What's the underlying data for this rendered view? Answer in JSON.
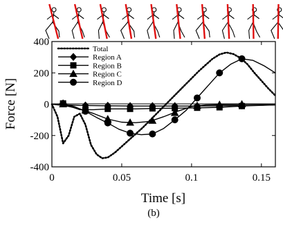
{
  "chart_data": {
    "type": "line",
    "title": "",
    "caption": "(b)",
    "xlabel": "Time [s]",
    "ylabel": "Force [N]",
    "xlim": [
      0,
      0.16
    ],
    "ylim": [
      -400,
      400
    ],
    "xticks": [
      0,
      0.05,
      0.1,
      0.15
    ],
    "xtick_labels": [
      "0",
      "0.05",
      "0.1",
      "0.15"
    ],
    "yticks": [
      -400,
      -200,
      0,
      200,
      400
    ],
    "ytick_labels": [
      "-400",
      "-200",
      "0",
      "200",
      "400"
    ],
    "grid": false,
    "legend_position": "top-left",
    "stick_figures": 10,
    "series": [
      {
        "name": "Total",
        "style": "dotted",
        "marker": "none",
        "color": "#000000",
        "x": [
          0,
          0.004,
          0.008,
          0.012,
          0.016,
          0.02,
          0.024,
          0.028,
          0.032,
          0.036,
          0.04,
          0.045,
          0.05,
          0.055,
          0.06,
          0.065,
          0.07,
          0.075,
          0.08,
          0.085,
          0.09,
          0.095,
          0.1,
          0.105,
          0.11,
          0.115,
          0.12,
          0.125,
          0.13,
          0.135,
          0.14,
          0.145,
          0.15,
          0.155,
          0.16
        ],
        "y": [
          0,
          -80,
          -250,
          -200,
          -80,
          -60,
          -130,
          -260,
          -320,
          -345,
          -340,
          -310,
          -270,
          -230,
          -190,
          -150,
          -105,
          -60,
          -15,
          30,
          75,
          120,
          165,
          210,
          250,
          290,
          318,
          330,
          320,
          295,
          255,
          200,
          150,
          100,
          55
        ]
      },
      {
        "name": "Region A",
        "style": "solid",
        "marker": "diamond",
        "color": "#000000",
        "x": [
          0,
          0.02,
          0.04,
          0.06,
          0.08,
          0.1,
          0.12,
          0.14,
          0.16
        ],
        "y": [
          0,
          -8,
          -10,
          -12,
          -12,
          -12,
          -10,
          -8,
          -5
        ],
        "marker_x": [
          0.008,
          0.024,
          0.04,
          0.056,
          0.072,
          0.088,
          0.104,
          0.12,
          0.136
        ],
        "marker_y": [
          5,
          -8,
          -10,
          -12,
          -12,
          -12,
          -12,
          -10,
          -8
        ]
      },
      {
        "name": "Region B",
        "style": "solid",
        "marker": "square",
        "color": "#000000",
        "x": [
          0,
          0.01,
          0.02,
          0.03,
          0.04,
          0.05,
          0.06,
          0.07,
          0.08,
          0.09,
          0.1,
          0.11,
          0.12,
          0.13,
          0.14,
          0.16
        ],
        "y": [
          0,
          -5,
          -35,
          -35,
          -30,
          -30,
          -30,
          -28,
          -26,
          -25,
          -24,
          -22,
          -20,
          -15,
          -10,
          -5
        ],
        "marker_x": [
          0.008,
          0.024,
          0.04,
          0.056,
          0.072,
          0.088,
          0.104,
          0.12,
          0.136
        ],
        "marker_y": [
          5,
          -35,
          -30,
          -30,
          -27,
          -25,
          -23,
          -20,
          -12
        ]
      },
      {
        "name": "Region C",
        "style": "solid",
        "marker": "triangle",
        "color": "#000000",
        "x": [
          0,
          0.01,
          0.02,
          0.03,
          0.04,
          0.05,
          0.06,
          0.07,
          0.08,
          0.09,
          0.1,
          0.11,
          0.12,
          0.13,
          0.14,
          0.16
        ],
        "y": [
          0,
          -10,
          -30,
          -60,
          -95,
          -115,
          -118,
          -110,
          -80,
          -45,
          -15,
          -5,
          -3,
          -2,
          0,
          0
        ],
        "marker_x": [
          0.008,
          0.024,
          0.04,
          0.056,
          0.072,
          0.088,
          0.104,
          0.12,
          0.136
        ],
        "marker_y": [
          0,
          -40,
          -95,
          -117,
          -105,
          -55,
          -10,
          -3,
          0
        ]
      },
      {
        "name": "Region D",
        "style": "solid",
        "marker": "circle",
        "color": "#000000",
        "x": [
          0,
          0.008,
          0.016,
          0.024,
          0.032,
          0.04,
          0.048,
          0.056,
          0.064,
          0.072,
          0.08,
          0.088,
          0.096,
          0.104,
          0.112,
          0.12,
          0.128,
          0.136,
          0.144,
          0.152,
          0.16
        ],
        "y": [
          0,
          2,
          -15,
          -45,
          -85,
          -120,
          -160,
          -185,
          -195,
          -190,
          -155,
          -100,
          -40,
          40,
          120,
          200,
          255,
          290,
          280,
          245,
          200
        ],
        "marker_x": [
          0.008,
          0.024,
          0.04,
          0.056,
          0.072,
          0.088,
          0.104,
          0.12,
          0.136
        ],
        "marker_y": [
          2,
          -45,
          -120,
          -185,
          -190,
          -100,
          40,
          200,
          290
        ]
      }
    ]
  }
}
